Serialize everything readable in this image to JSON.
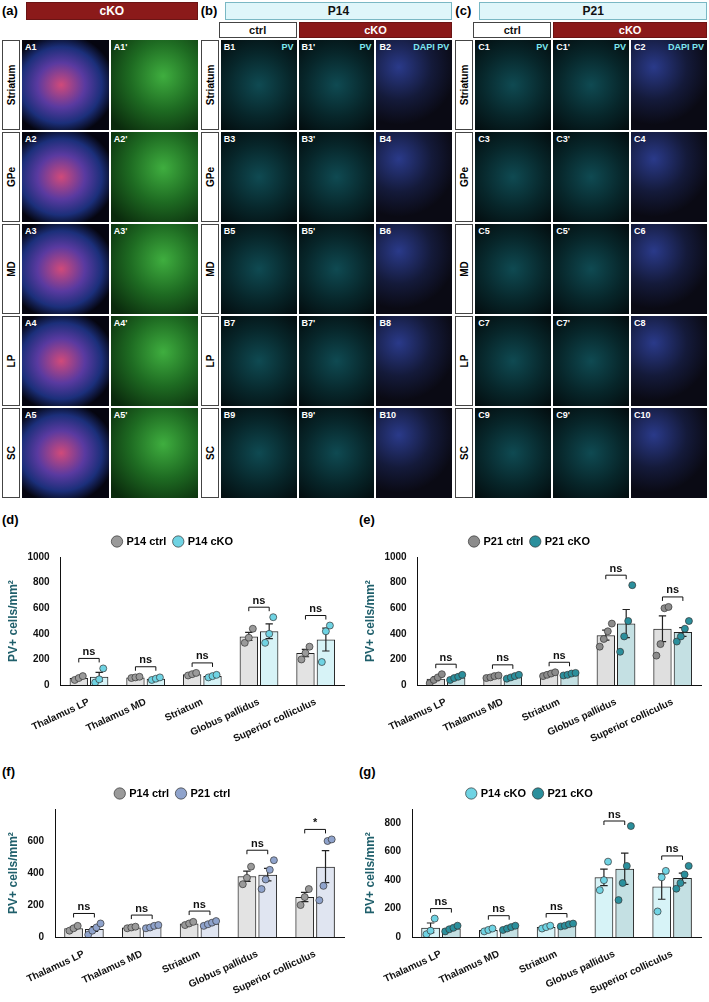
{
  "image_panels": [
    {
      "panel": "(a)",
      "header": "cKO",
      "rows": [
        {
          "label": "Striatum",
          "images": [
            {
              "label": "A1"
            },
            {
              "label": "A1'"
            }
          ]
        },
        {
          "label": "GPe",
          "images": [
            {
              "label": "A2"
            },
            {
              "label": "A2'"
            }
          ]
        },
        {
          "label": "MD",
          "images": [
            {
              "label": "A3"
            },
            {
              "label": "A3'"
            }
          ]
        },
        {
          "label": "LP",
          "images": [
            {
              "label": "A4"
            },
            {
              "label": "A4'"
            }
          ]
        },
        {
          "label": "SC",
          "images": [
            {
              "label": "A5"
            },
            {
              "label": "A5'"
            }
          ]
        }
      ]
    },
    {
      "panel": "(b)",
      "header": "P14",
      "columns": [
        "ctrl",
        "cKO"
      ],
      "rows": [
        {
          "label": "Striatum",
          "images": [
            {
              "label": "B1",
              "stain": "PV"
            },
            {
              "label": "B1'",
              "stain": "PV"
            },
            {
              "label": "B2",
              "stain": "DAPI PV"
            }
          ]
        },
        {
          "label": "GPe",
          "images": [
            {
              "label": "B3"
            },
            {
              "label": "B3'"
            },
            {
              "label": "B4"
            }
          ]
        },
        {
          "label": "MD",
          "images": [
            {
              "label": "B5"
            },
            {
              "label": "B5'"
            },
            {
              "label": "B6"
            }
          ]
        },
        {
          "label": "LP",
          "images": [
            {
              "label": "B7"
            },
            {
              "label": "B7'"
            },
            {
              "label": "B8"
            }
          ]
        },
        {
          "label": "SC",
          "images": [
            {
              "label": "B9"
            },
            {
              "label": "B9'"
            },
            {
              "label": "B10"
            }
          ]
        }
      ]
    },
    {
      "panel": "(c)",
      "header": "P21",
      "columns": [
        "ctrl",
        "cKO"
      ],
      "rows": [
        {
          "label": "Striatum",
          "images": [
            {
              "label": "C1",
              "stain": "PV"
            },
            {
              "label": "C1'",
              "stain": "PV"
            },
            {
              "label": "C2",
              "stain": "DAPI PV"
            }
          ]
        },
        {
          "label": "GPe",
          "images": [
            {
              "label": "C3"
            },
            {
              "label": "C3'"
            },
            {
              "label": "C4"
            }
          ]
        },
        {
          "label": "MD",
          "images": [
            {
              "label": "C5"
            },
            {
              "label": "C5'"
            },
            {
              "label": "C6"
            }
          ]
        },
        {
          "label": "LP",
          "images": [
            {
              "label": "C7"
            },
            {
              "label": "C7'"
            },
            {
              "label": "C8"
            }
          ]
        },
        {
          "label": "SC",
          "images": [
            {
              "label": "C9"
            },
            {
              "label": "C9'"
            },
            {
              "label": "C10"
            }
          ]
        }
      ]
    }
  ],
  "chart_data": [
    {
      "type": "bar",
      "panel": "(d)",
      "y_label": "PV+ cells/mm²",
      "categories": [
        "Thalamus LP",
        "Thalamus MD",
        "Striatum",
        "Globus pallidus",
        "Superior colliculus"
      ],
      "series": [
        {
          "name": "P14 ctrl",
          "color": "#9a9a9a",
          "values": [
            55,
            60,
            85,
            380,
            250
          ],
          "errors": [
            9,
            3,
            6,
            32,
            29
          ],
          "points": [
            [
              40,
              55,
              70
            ],
            [
              55,
              60,
              65
            ],
            [
              75,
              85,
              95
            ],
            [
              330,
              370,
              440
            ],
            [
              200,
              250,
              300
            ]
          ]
        },
        {
          "name": "P14 cKO",
          "color": "#6fd3e3",
          "values": [
            65,
            50,
            70,
            420,
            355
          ],
          "errors": [
            34,
            6,
            6,
            58,
            89
          ],
          "points": [
            [
              20,
              45,
              130
            ],
            [
              40,
              50,
              60
            ],
            [
              60,
              70,
              80
            ],
            [
              330,
              400,
              530
            ],
            [
              180,
              420,
              465
            ]
          ]
        }
      ],
      "annotations": [
        "ns",
        "ns",
        "ns",
        "ns",
        "ns"
      ],
      "ylim": [
        0,
        1000
      ],
      "yticks": [
        0,
        200,
        400,
        600,
        800,
        1000
      ],
      "grid": false,
      "legend": "top"
    },
    {
      "type": "bar",
      "panel": "(e)",
      "y_label": "PV+ cells/mm²",
      "categories": [
        "Thalamus LP",
        "Thalamus MD",
        "Striatum",
        "Globus pallidus",
        "Superior colliculus"
      ],
      "series": [
        {
          "name": "P21 ctrl",
          "color": "#8c8c8c",
          "values": [
            50,
            65,
            85,
            390,
            440
          ],
          "errors": [
            15,
            4,
            6,
            39,
            100
          ],
          "points": [
            [
              15,
              40,
              60,
              85
            ],
            [
              55,
              60,
              70,
              75
            ],
            [
              70,
              80,
              90,
              100
            ],
            [
              300,
              360,
              420,
              480
            ],
            [
              230,
              320,
              600,
              610
            ]
          ]
        },
        {
          "name": "P21 cKO",
          "color": "#2b8f9c",
          "values": [
            60,
            65,
            85,
            480,
            415
          ],
          "errors": [
            8,
            6,
            5,
            110,
            34
          ],
          "points": [
            [
              40,
              55,
              65,
              80
            ],
            [
              50,
              60,
              70,
              80
            ],
            [
              75,
              80,
              90,
              95
            ],
            [
              260,
              380,
              500,
              780
            ],
            [
              340,
              380,
              440,
              500
            ]
          ]
        }
      ],
      "annotations": [
        "ns",
        "ns",
        "ns",
        "ns",
        "ns"
      ],
      "ylim": [
        0,
        1000
      ],
      "yticks": [
        0,
        200,
        400,
        600,
        800,
        1000
      ],
      "grid": false,
      "legend": "top"
    },
    {
      "type": "bar",
      "panel": "(f)",
      "y_label": "PV+ cells/mm²",
      "categories": [
        "Thalamus LP",
        "Thalamus MD",
        "Striatum",
        "Globus pallidus",
        "Superior colliculus"
      ],
      "series": [
        {
          "name": "P14 ctrl",
          "color": "#9a9a9a",
          "values": [
            55,
            60,
            85,
            380,
            250
          ],
          "errors": [
            9,
            3,
            6,
            32,
            29
          ],
          "points": [
            [
              40,
              55,
              70
            ],
            [
              55,
              60,
              65
            ],
            [
              75,
              85,
              95
            ],
            [
              330,
              370,
              440
            ],
            [
              200,
              250,
              300
            ]
          ]
        },
        {
          "name": "P21 ctrl",
          "color": "#8fa3cc",
          "values": [
            50,
            65,
            85,
            390,
            440
          ],
          "errors": [
            15,
            4,
            6,
            39,
            100
          ],
          "points": [
            [
              15,
              40,
              60,
              85
            ],
            [
              55,
              60,
              70,
              75
            ],
            [
              70,
              80,
              90,
              100
            ],
            [
              300,
              360,
              420,
              480
            ],
            [
              230,
              320,
              600,
              610
            ]
          ]
        }
      ],
      "annotations": [
        "ns",
        "ns",
        "ns",
        "ns",
        "*"
      ],
      "ylim": [
        0,
        800
      ],
      "yticks": [
        0,
        200,
        400,
        600
      ],
      "grid": false,
      "legend": "top"
    },
    {
      "type": "bar",
      "panel": "(g)",
      "y_label": "PV+ cells/mm²",
      "categories": [
        "Thalamus LP",
        "Thalamus MD",
        "Striatum",
        "Globus pallidus",
        "Superior colliculus"
      ],
      "series": [
        {
          "name": "P14 cKO",
          "color": "#6fd3e3",
          "values": [
            65,
            50,
            70,
            420,
            355
          ],
          "errors": [
            34,
            6,
            6,
            58,
            89
          ],
          "points": [
            [
              20,
              45,
              130
            ],
            [
              40,
              50,
              60
            ],
            [
              60,
              70,
              80
            ],
            [
              330,
              400,
              530
            ],
            [
              180,
              420,
              465
            ]
          ]
        },
        {
          "name": "P21 cKO",
          "color": "#2b8f9c",
          "values": [
            60,
            65,
            85,
            480,
            415
          ],
          "errors": [
            8,
            6,
            5,
            110,
            34
          ],
          "points": [
            [
              40,
              55,
              65,
              80
            ],
            [
              50,
              60,
              70,
              80
            ],
            [
              75,
              80,
              90,
              95
            ],
            [
              260,
              380,
              500,
              780
            ],
            [
              340,
              380,
              440,
              500
            ]
          ]
        }
      ],
      "annotations": [
        "ns",
        "ns",
        "ns",
        "ns",
        "ns"
      ],
      "ylim": [
        0,
        900
      ],
      "yticks": [
        0,
        200,
        400,
        600,
        800
      ],
      "grid": false,
      "legend": "top"
    }
  ]
}
